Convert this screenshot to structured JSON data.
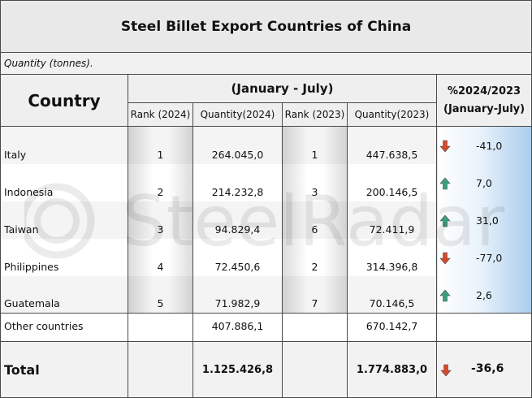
{
  "title": "Steel Billet Export Countries of China",
  "note": "Quantity (tonnes).",
  "headers": {
    "country": "Country",
    "period": "(January - July)",
    "rank2024": "Rank (2024)",
    "qty2024": "Quantity(2024)",
    "rank2023": "Rank (2023)",
    "qty2023": "Quantity(2023)",
    "pct_line1": "%2024/2023",
    "pct_line2": "(January-July)"
  },
  "watermark": "SteelRadar",
  "colors": {
    "up": "#3aa07a",
    "down": "#d9472b",
    "pct_gradient": "#a9cdee"
  },
  "rows": [
    {
      "country": "Italy",
      "rank2024": "1",
      "qty2024": "264.045,0",
      "rank2023": "1",
      "qty2023": "447.638,5",
      "pct": "-41,0",
      "trend": "down"
    },
    {
      "country": "Indonesia",
      "rank2024": "2",
      "qty2024": "214.232,8",
      "rank2023": "3",
      "qty2023": "200.146,5",
      "pct": "7,0",
      "trend": "up"
    },
    {
      "country": "Taiwan",
      "rank2024": "3",
      "qty2024": "94.829,4",
      "rank2023": "6",
      "qty2023": "72.411,9",
      "pct": "31,0",
      "trend": "up"
    },
    {
      "country": "Philippines",
      "rank2024": "4",
      "qty2024": "72.450,6",
      "rank2023": "2",
      "qty2023": "314.396,8",
      "pct": "-77,0",
      "trend": "down"
    },
    {
      "country": "Guatemala",
      "rank2024": "5",
      "qty2024": "71.982,9",
      "rank2023": "7",
      "qty2023": "70.146,5",
      "pct": "2,6",
      "trend": "up"
    }
  ],
  "other": {
    "label": "Other countries",
    "qty2024": "407.886,1",
    "qty2023": "670.142,7"
  },
  "total": {
    "label": "Total",
    "qty2024": "1.125.426,8",
    "qty2023": "1.774.883,0",
    "pct": "-36,6",
    "trend": "down"
  }
}
